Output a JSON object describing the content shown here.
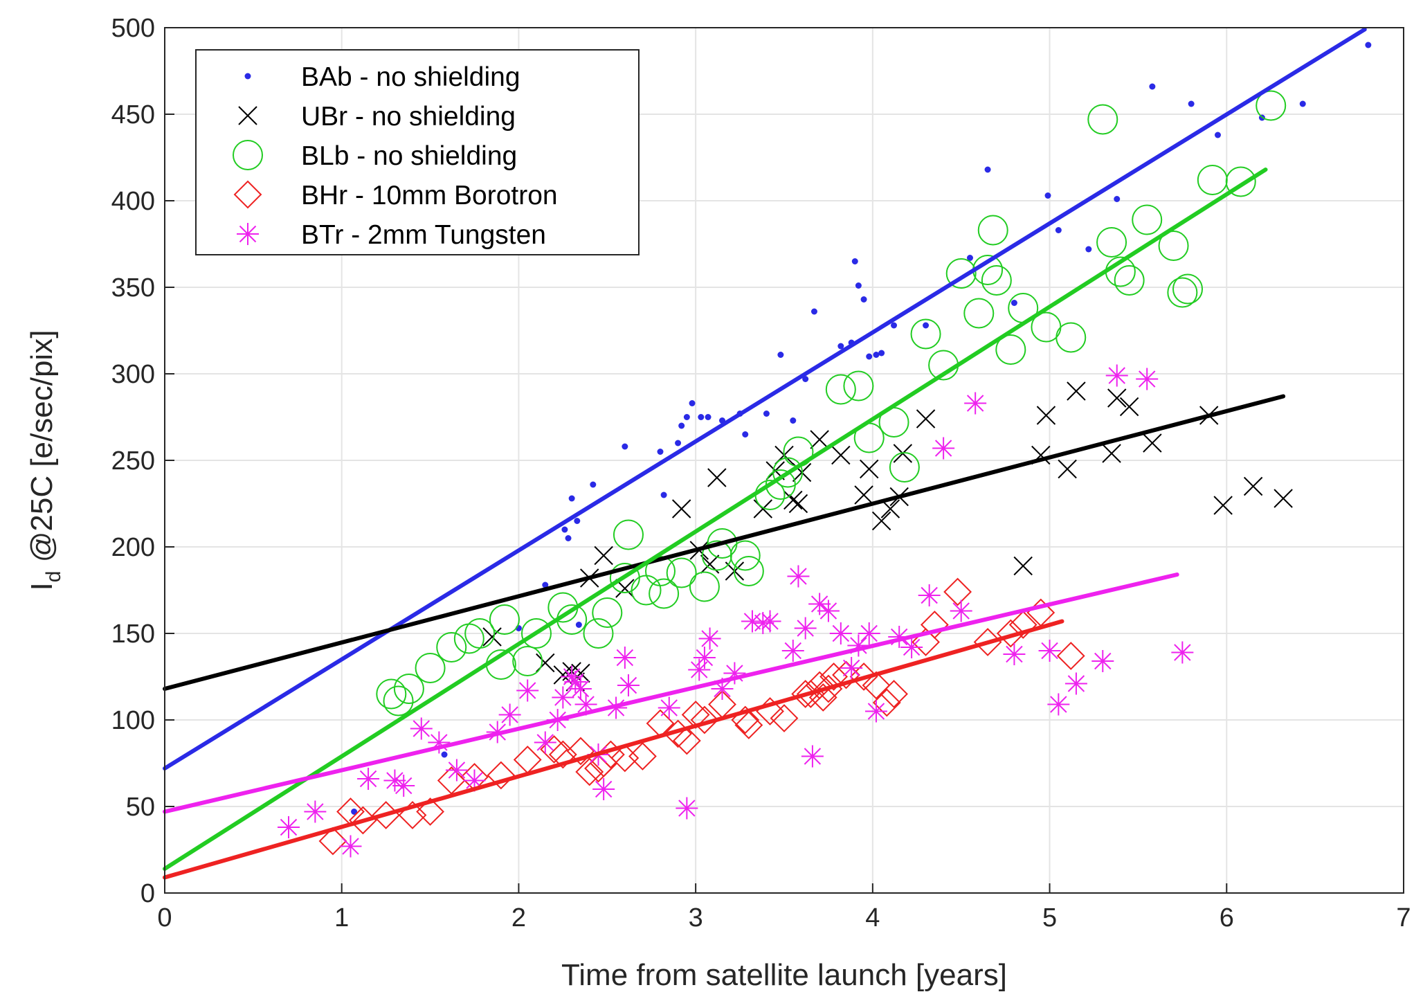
{
  "chart_data": {
    "type": "scatter",
    "xlabel": "Time from satellite launch [years]",
    "ylabel_main": "I",
    "ylabel_sub": "d",
    "ylabel_rest": " @25C [e/sec/pix]",
    "xlim": [
      0,
      7
    ],
    "ylim": [
      0,
      500
    ],
    "xticks": [
      0,
      1,
      2,
      3,
      4,
      5,
      6,
      7
    ],
    "yticks": [
      0,
      50,
      100,
      150,
      200,
      250,
      300,
      350,
      400,
      450,
      500
    ],
    "grid": true,
    "legend_position": "top-left",
    "series": [
      {
        "name": "BAb - no shielding",
        "marker": "dot",
        "color": "#2a2ae6",
        "fit": {
          "x0": 0,
          "y0": 72,
          "x1": 6.78,
          "y1": 499
        },
        "points": [
          [
            1.07,
            47
          ],
          [
            1.58,
            80
          ],
          [
            2.0,
            153
          ],
          [
            2.15,
            178
          ],
          [
            2.26,
            210
          ],
          [
            2.28,
            205
          ],
          [
            2.3,
            228
          ],
          [
            2.33,
            215
          ],
          [
            2.34,
            155
          ],
          [
            2.42,
            236
          ],
          [
            2.6,
            258
          ],
          [
            2.8,
            255
          ],
          [
            2.82,
            230
          ],
          [
            2.9,
            260
          ],
          [
            2.92,
            270
          ],
          [
            2.95,
            275
          ],
          [
            2.98,
            283
          ],
          [
            3.03,
            275
          ],
          [
            3.07,
            275
          ],
          [
            3.15,
            273
          ],
          [
            3.25,
            277
          ],
          [
            3.28,
            265
          ],
          [
            3.4,
            277
          ],
          [
            3.48,
            311
          ],
          [
            3.55,
            273
          ],
          [
            3.62,
            297
          ],
          [
            3.67,
            336
          ],
          [
            3.82,
            316
          ],
          [
            3.88,
            318
          ],
          [
            3.9,
            365
          ],
          [
            3.92,
            351
          ],
          [
            3.95,
            343
          ],
          [
            3.98,
            310
          ],
          [
            4.02,
            311
          ],
          [
            4.05,
            312
          ],
          [
            4.12,
            328
          ],
          [
            4.3,
            328
          ],
          [
            4.55,
            367
          ],
          [
            4.65,
            418
          ],
          [
            4.8,
            341
          ],
          [
            4.99,
            403
          ],
          [
            5.05,
            383
          ],
          [
            5.22,
            372
          ],
          [
            5.38,
            401
          ],
          [
            5.58,
            466
          ],
          [
            5.8,
            456
          ],
          [
            5.95,
            438
          ],
          [
            6.2,
            448
          ],
          [
            6.43,
            456
          ],
          [
            6.8,
            490
          ]
        ]
      },
      {
        "name": "UBr - no shielding",
        "marker": "x",
        "color": "#000000",
        "fit": {
          "x0": 0,
          "y0": 118,
          "x1": 6.32,
          "y1": 287
        },
        "points": [
          [
            1.85,
            148
          ],
          [
            2.15,
            133
          ],
          [
            2.25,
            126
          ],
          [
            2.3,
            128
          ],
          [
            2.32,
            122
          ],
          [
            2.35,
            127
          ],
          [
            2.4,
            182
          ],
          [
            2.48,
            195
          ],
          [
            2.6,
            176
          ],
          [
            2.92,
            222
          ],
          [
            3.02,
            198
          ],
          [
            3.08,
            190
          ],
          [
            3.12,
            240
          ],
          [
            3.22,
            186
          ],
          [
            3.38,
            222
          ],
          [
            3.45,
            244
          ],
          [
            3.5,
            253
          ],
          [
            3.55,
            227
          ],
          [
            3.58,
            225
          ],
          [
            3.6,
            243
          ],
          [
            3.7,
            262
          ],
          [
            3.82,
            253
          ],
          [
            3.95,
            230
          ],
          [
            3.98,
            245
          ],
          [
            4.05,
            215
          ],
          [
            4.1,
            222
          ],
          [
            4.15,
            229
          ],
          [
            4.17,
            254
          ],
          [
            4.3,
            274
          ],
          [
            4.85,
            189
          ],
          [
            4.95,
            253
          ],
          [
            4.98,
            276
          ],
          [
            5.1,
            245
          ],
          [
            5.15,
            290
          ],
          [
            5.35,
            254
          ],
          [
            5.38,
            286
          ],
          [
            5.45,
            281
          ],
          [
            5.58,
            260
          ],
          [
            5.9,
            276
          ],
          [
            5.98,
            224
          ],
          [
            6.15,
            235
          ],
          [
            6.32,
            228
          ]
        ]
      },
      {
        "name": "BLb - no shielding",
        "marker": "circle",
        "color": "#22cc22",
        "fit": {
          "x0": 0,
          "y0": 14,
          "x1": 6.22,
          "y1": 418
        },
        "points": [
          [
            1.28,
            115
          ],
          [
            1.32,
            111
          ],
          [
            1.38,
            118
          ],
          [
            1.5,
            130
          ],
          [
            1.62,
            142
          ],
          [
            1.72,
            147
          ],
          [
            1.78,
            150
          ],
          [
            1.9,
            132
          ],
          [
            1.92,
            158
          ],
          [
            2.05,
            134
          ],
          [
            2.1,
            150
          ],
          [
            2.25,
            165
          ],
          [
            2.3,
            158
          ],
          [
            2.45,
            150
          ],
          [
            2.5,
            162
          ],
          [
            2.6,
            182
          ],
          [
            2.62,
            207
          ],
          [
            2.72,
            175
          ],
          [
            2.8,
            186
          ],
          [
            2.82,
            173
          ],
          [
            2.92,
            185
          ],
          [
            3.05,
            177
          ],
          [
            3.12,
            195
          ],
          [
            3.15,
            202
          ],
          [
            3.28,
            195
          ],
          [
            3.3,
            186
          ],
          [
            3.42,
            230
          ],
          [
            3.48,
            236
          ],
          [
            3.52,
            243
          ],
          [
            3.58,
            255
          ],
          [
            3.82,
            291
          ],
          [
            3.92,
            293
          ],
          [
            3.98,
            263
          ],
          [
            4.12,
            272
          ],
          [
            4.18,
            246
          ],
          [
            4.3,
            323
          ],
          [
            4.4,
            305
          ],
          [
            4.5,
            358
          ],
          [
            4.6,
            335
          ],
          [
            4.65,
            360
          ],
          [
            4.68,
            383
          ],
          [
            4.7,
            354
          ],
          [
            4.78,
            314
          ],
          [
            4.85,
            338
          ],
          [
            4.98,
            327
          ],
          [
            5.12,
            321
          ],
          [
            5.3,
            447
          ],
          [
            5.35,
            376
          ],
          [
            5.4,
            359
          ],
          [
            5.45,
            354
          ],
          [
            5.55,
            389
          ],
          [
            5.7,
            374
          ],
          [
            5.75,
            347
          ],
          [
            5.78,
            349
          ],
          [
            5.92,
            412
          ],
          [
            6.08,
            411
          ],
          [
            6.25,
            455
          ]
        ]
      },
      {
        "name": "BHr - 10mm Borotron",
        "marker": "diamond",
        "color": "#ee2222",
        "fit": {
          "x0": 0,
          "y0": 9,
          "x1": 5.07,
          "y1": 157
        },
        "points": [
          [
            0.95,
            30
          ],
          [
            1.05,
            47
          ],
          [
            1.12,
            42
          ],
          [
            1.25,
            45
          ],
          [
            1.4,
            45
          ],
          [
            1.5,
            47
          ],
          [
            1.62,
            65
          ],
          [
            1.75,
            67
          ],
          [
            1.9,
            68
          ],
          [
            2.05,
            77
          ],
          [
            2.2,
            83
          ],
          [
            2.25,
            80
          ],
          [
            2.35,
            82
          ],
          [
            2.4,
            70
          ],
          [
            2.45,
            72
          ],
          [
            2.48,
            75
          ],
          [
            2.52,
            80
          ],
          [
            2.6,
            78
          ],
          [
            2.7,
            79
          ],
          [
            2.8,
            98
          ],
          [
            2.9,
            92
          ],
          [
            2.95,
            88
          ],
          [
            3.0,
            103
          ],
          [
            3.05,
            100
          ],
          [
            3.15,
            109
          ],
          [
            3.28,
            100
          ],
          [
            3.3,
            97
          ],
          [
            3.42,
            105
          ],
          [
            3.5,
            101
          ],
          [
            3.62,
            115
          ],
          [
            3.65,
            115
          ],
          [
            3.7,
            120
          ],
          [
            3.72,
            113
          ],
          [
            3.75,
            118
          ],
          [
            3.78,
            125
          ],
          [
            3.85,
            126
          ],
          [
            3.95,
            125
          ],
          [
            4.02,
            120
          ],
          [
            4.08,
            110
          ],
          [
            4.12,
            115
          ],
          [
            4.3,
            145
          ],
          [
            4.35,
            155
          ],
          [
            4.48,
            174
          ],
          [
            4.65,
            145
          ],
          [
            4.78,
            150
          ],
          [
            4.85,
            155
          ],
          [
            4.95,
            162
          ],
          [
            5.12,
            137
          ]
        ]
      },
      {
        "name": "BTr - 2mm Tungsten",
        "marker": "asterisk",
        "color": "#ee22ee",
        "fit": {
          "x0": 0,
          "y0": 47,
          "x1": 5.72,
          "y1": 184
        },
        "points": [
          [
            0.7,
            38
          ],
          [
            0.85,
            47
          ],
          [
            1.05,
            27
          ],
          [
            1.15,
            66
          ],
          [
            1.3,
            65
          ],
          [
            1.35,
            62
          ],
          [
            1.45,
            95
          ],
          [
            1.55,
            87
          ],
          [
            1.65,
            71
          ],
          [
            1.75,
            65
          ],
          [
            1.88,
            93
          ],
          [
            1.95,
            103
          ],
          [
            2.05,
            117
          ],
          [
            2.15,
            87
          ],
          [
            2.22,
            100
          ],
          [
            2.25,
            113
          ],
          [
            2.3,
            125
          ],
          [
            2.32,
            122
          ],
          [
            2.35,
            118
          ],
          [
            2.38,
            109
          ],
          [
            2.45,
            80
          ],
          [
            2.48,
            60
          ],
          [
            2.55,
            107
          ],
          [
            2.6,
            136
          ],
          [
            2.62,
            120
          ],
          [
            2.85,
            107
          ],
          [
            2.95,
            49
          ],
          [
            3.02,
            129
          ],
          [
            3.05,
            136
          ],
          [
            3.08,
            147
          ],
          [
            3.15,
            118
          ],
          [
            3.22,
            127
          ],
          [
            3.32,
            157
          ],
          [
            3.38,
            156
          ],
          [
            3.42,
            157
          ],
          [
            3.55,
            140
          ],
          [
            3.58,
            183
          ],
          [
            3.62,
            153
          ],
          [
            3.66,
            79
          ],
          [
            3.7,
            167
          ],
          [
            3.75,
            163
          ],
          [
            3.82,
            150
          ],
          [
            3.88,
            130
          ],
          [
            3.92,
            143
          ],
          [
            3.98,
            150
          ],
          [
            4.02,
            105
          ],
          [
            4.15,
            148
          ],
          [
            4.22,
            142
          ],
          [
            4.32,
            172
          ],
          [
            4.4,
            257
          ],
          [
            4.5,
            163
          ],
          [
            4.58,
            283
          ],
          [
            4.8,
            138
          ],
          [
            5.0,
            140
          ],
          [
            5.05,
            109
          ],
          [
            5.15,
            121
          ],
          [
            5.3,
            134
          ],
          [
            5.38,
            299
          ],
          [
            5.55,
            297
          ],
          [
            5.75,
            139
          ]
        ]
      }
    ]
  }
}
